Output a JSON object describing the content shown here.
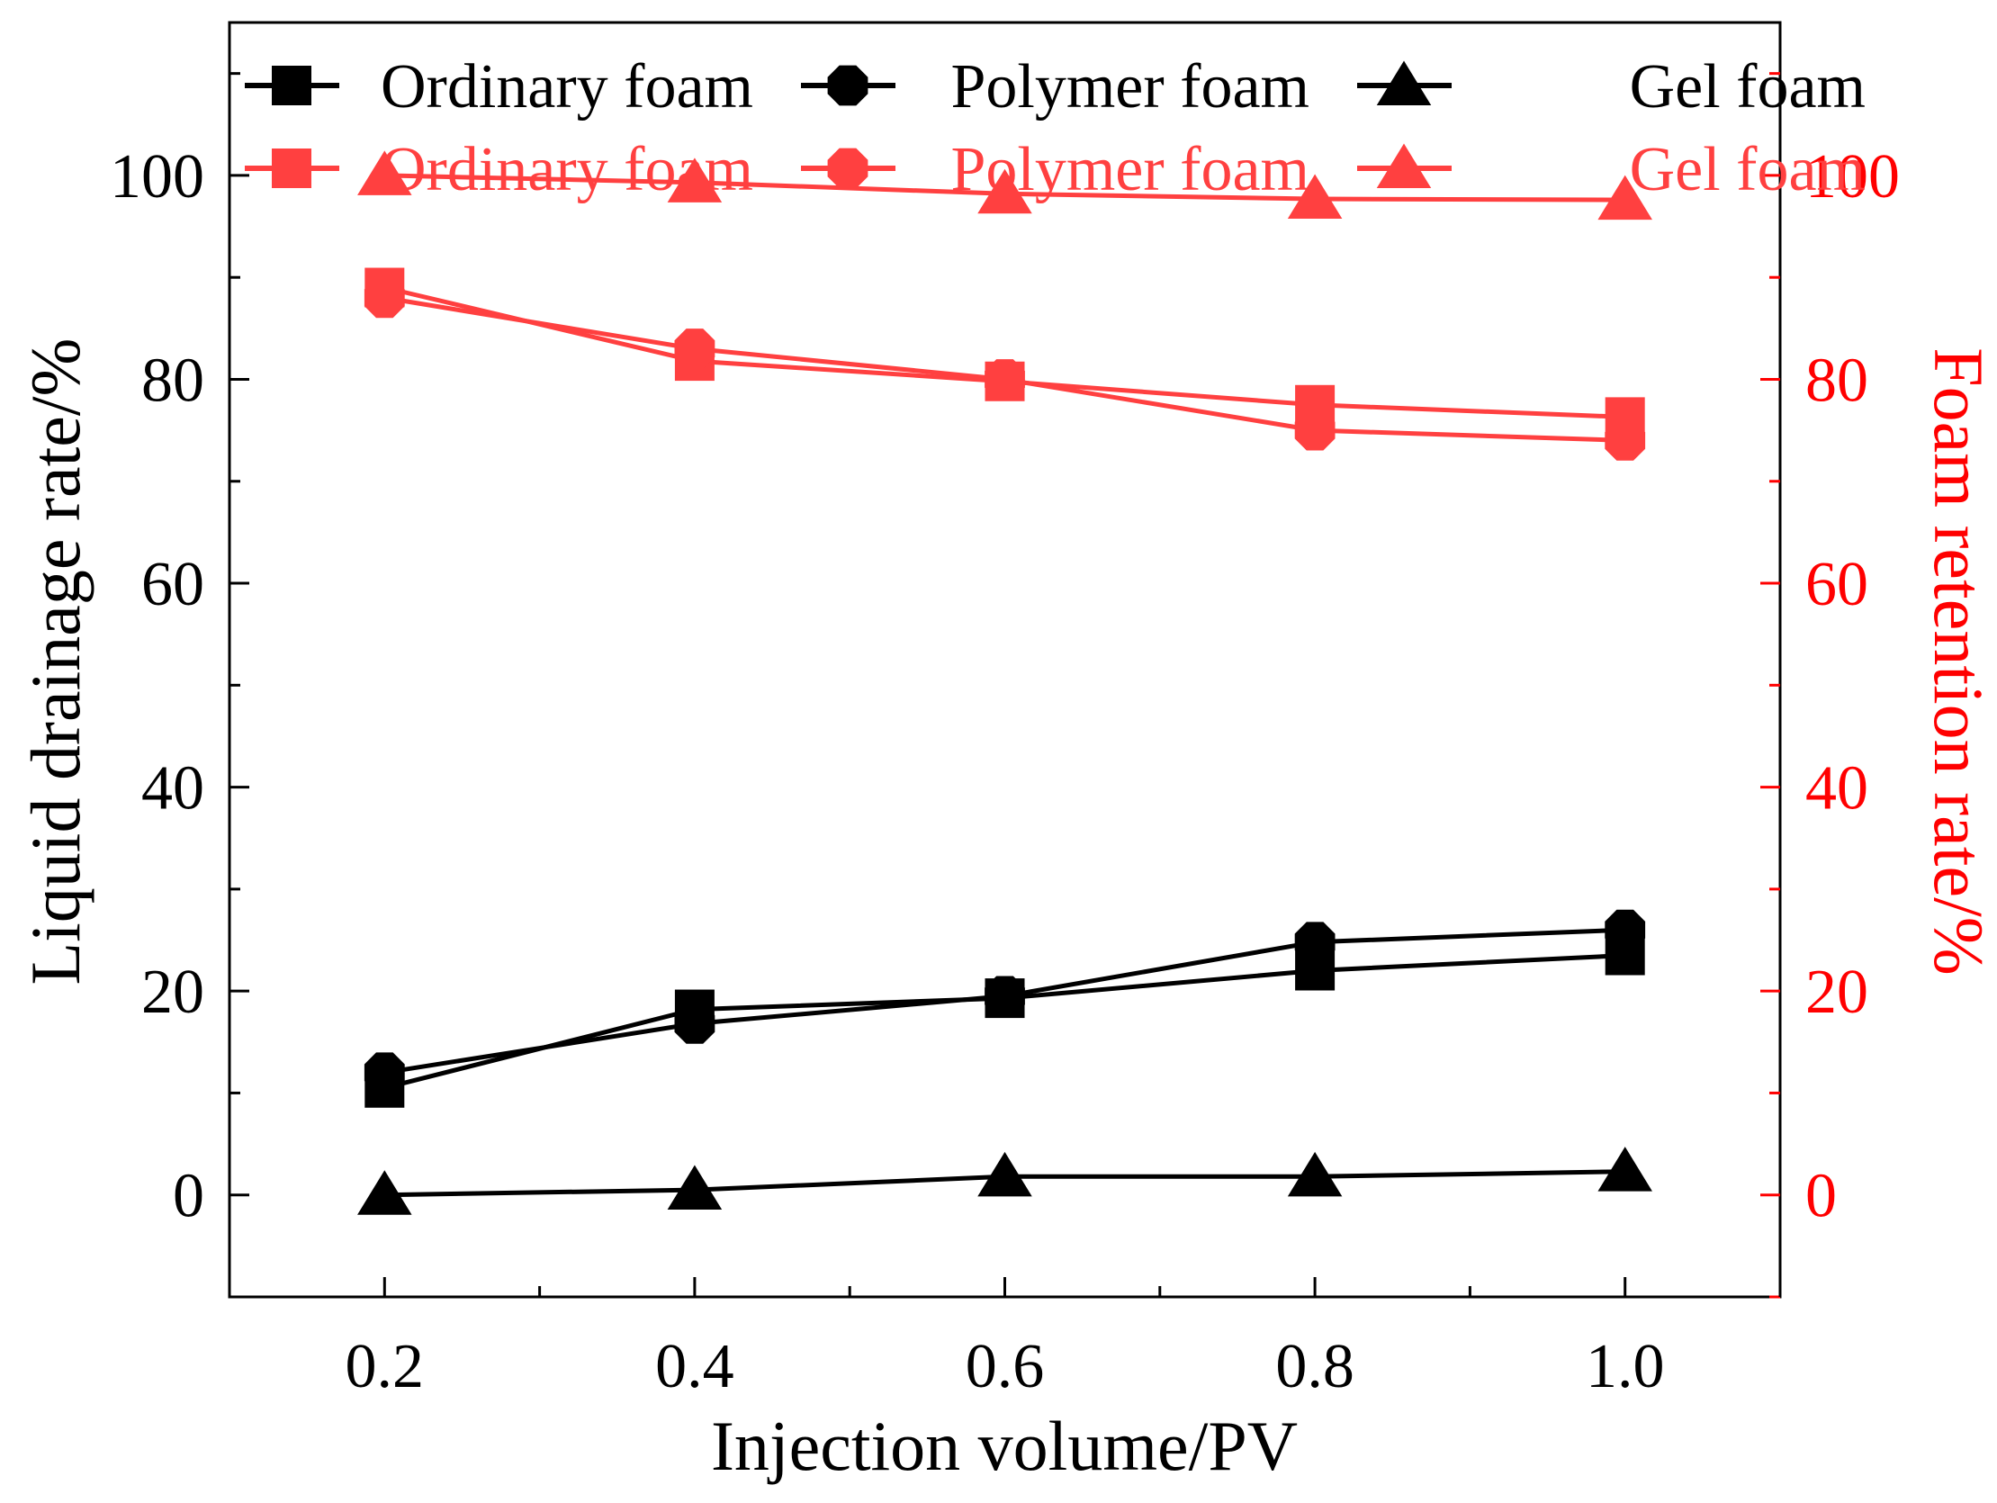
{
  "chart_data": {
    "type": "line",
    "x": [
      0.2,
      0.4,
      0.6,
      0.8,
      1.0
    ],
    "xlabel": "Injection volume/PV",
    "ylabel_left": "Liquid drainage rate/%",
    "ylabel_right": "Foam retention rate/%",
    "xlim": [
      0.1,
      1.1
    ],
    "ylim": [
      -10,
      115
    ],
    "x_ticks": [
      "0.2",
      "0.4",
      "0.6",
      "0.8",
      "1.0"
    ],
    "y_ticks": [
      "0",
      "20",
      "40",
      "60",
      "80",
      "100"
    ],
    "y_tick_values": [
      0,
      20,
      40,
      60,
      80,
      100
    ],
    "x_tick_values": [
      0.2,
      0.4,
      0.6,
      0.8,
      1.0
    ],
    "legend_position": "top",
    "colors": {
      "drainage": "#000000",
      "retention": "#ff4040",
      "right_axis": "#ff0000"
    },
    "series": [
      {
        "name": "Ordinary foam",
        "group": "drainage",
        "marker": "square",
        "values": [
          10.5,
          18.2,
          19.3,
          22.0,
          23.5
        ]
      },
      {
        "name": "Polymer foam",
        "group": "drainage",
        "marker": "circle",
        "values": [
          12.0,
          16.8,
          19.5,
          24.8,
          26.0
        ]
      },
      {
        "name": "Gel foam",
        "group": "drainage",
        "marker": "triangle",
        "values": [
          0.0,
          0.5,
          1.8,
          1.8,
          2.3
        ]
      },
      {
        "name": "Ordinary foam",
        "group": "retention",
        "marker": "square",
        "values": [
          89.0,
          81.8,
          79.8,
          77.5,
          76.3
        ]
      },
      {
        "name": "Polymer foam",
        "group": "retention",
        "marker": "circle",
        "values": [
          88.0,
          83.0,
          80.0,
          75.0,
          74.0
        ]
      },
      {
        "name": "Gel foam",
        "group": "retention",
        "marker": "triangle",
        "values": [
          100.0,
          99.3,
          98.2,
          97.7,
          97.6
        ]
      }
    ]
  }
}
